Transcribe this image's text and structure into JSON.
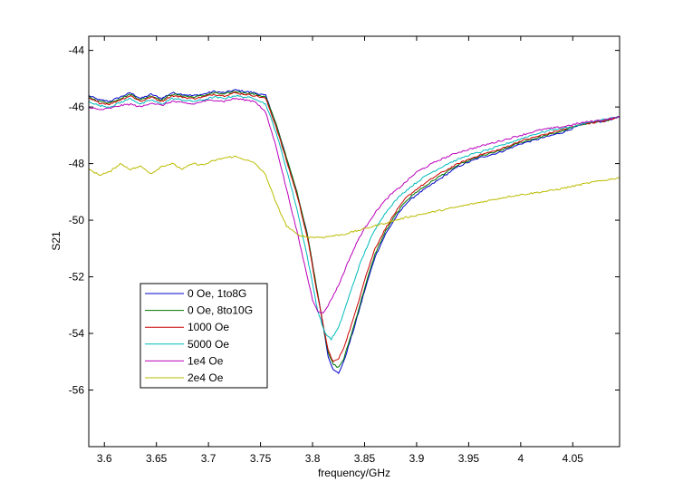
{
  "chart_data": {
    "type": "line",
    "title": "",
    "xlabel": "frequency/GHz",
    "ylabel": "S21",
    "xlim": [
      3.585,
      4.095
    ],
    "ylim": [
      -58,
      -43.5
    ],
    "xticks": [
      3.6,
      3.65,
      3.7,
      3.75,
      3.8,
      3.85,
      3.9,
      3.95,
      4,
      4.05
    ],
    "xtick_labels": [
      "3.6",
      "3.65",
      "3.7",
      "3.75",
      "3.8",
      "3.85",
      "3.9",
      "3.95",
      "4",
      "4.05"
    ],
    "yticks": [
      -56,
      -54,
      -52,
      -50,
      -48,
      -46,
      -44
    ],
    "ytick_labels": [
      "-56",
      "-54",
      "-52",
      "-50",
      "-48",
      "-46",
      "-44"
    ],
    "grid": false,
    "legend_position": "lower-left",
    "series": [
      {
        "name": "0 Oe, 1to8G",
        "color": "#0000cc",
        "x": [
          3.585,
          3.595,
          3.605,
          3.615,
          3.625,
          3.635,
          3.645,
          3.655,
          3.665,
          3.675,
          3.685,
          3.695,
          3.705,
          3.715,
          3.725,
          3.735,
          3.745,
          3.755,
          3.765,
          3.775,
          3.785,
          3.795,
          3.805,
          3.815,
          3.82,
          3.825,
          3.83,
          3.84,
          3.85,
          3.86,
          3.87,
          3.88,
          3.89,
          3.9,
          3.92,
          3.94,
          3.96,
          3.98,
          4.0,
          4.02,
          4.04,
          4.06,
          4.08,
          4.095
        ],
        "y": [
          -45.6,
          -45.75,
          -45.8,
          -45.65,
          -45.5,
          -45.7,
          -45.55,
          -45.7,
          -45.5,
          -45.55,
          -45.6,
          -45.55,
          -45.45,
          -45.5,
          -45.4,
          -45.45,
          -45.5,
          -45.6,
          -46.6,
          -47.8,
          -49.0,
          -50.5,
          -52.6,
          -54.8,
          -55.3,
          -55.4,
          -55.0,
          -53.8,
          -52.5,
          -51.3,
          -50.5,
          -49.9,
          -49.4,
          -49.1,
          -48.6,
          -48.1,
          -47.8,
          -47.6,
          -47.3,
          -47.1,
          -46.9,
          -46.6,
          -46.5,
          -46.35
        ]
      },
      {
        "name": "0 Oe, 8to10G",
        "color": "#007700",
        "x": [
          3.585,
          3.595,
          3.605,
          3.615,
          3.625,
          3.635,
          3.645,
          3.655,
          3.665,
          3.675,
          3.685,
          3.695,
          3.705,
          3.715,
          3.725,
          3.735,
          3.745,
          3.755,
          3.765,
          3.775,
          3.785,
          3.795,
          3.805,
          3.815,
          3.82,
          3.825,
          3.83,
          3.84,
          3.85,
          3.86,
          3.87,
          3.88,
          3.89,
          3.9,
          3.92,
          3.94,
          3.96,
          3.98,
          4.0,
          4.02,
          4.04,
          4.06,
          4.08,
          4.095
        ],
        "y": [
          -45.65,
          -45.8,
          -45.85,
          -45.7,
          -45.55,
          -45.75,
          -45.6,
          -45.75,
          -45.55,
          -45.6,
          -45.65,
          -45.6,
          -45.5,
          -45.55,
          -45.45,
          -45.5,
          -45.55,
          -45.65,
          -46.6,
          -47.8,
          -49.0,
          -50.5,
          -52.6,
          -54.7,
          -55.1,
          -55.2,
          -54.9,
          -53.7,
          -52.4,
          -51.2,
          -50.4,
          -49.8,
          -49.3,
          -49.0,
          -48.5,
          -48.05,
          -47.75,
          -47.55,
          -47.25,
          -47.05,
          -46.85,
          -46.6,
          -46.5,
          -46.35
        ]
      },
      {
        "name": "1000 Oe",
        "color": "#cc0000",
        "x": [
          3.585,
          3.595,
          3.605,
          3.615,
          3.625,
          3.635,
          3.645,
          3.655,
          3.665,
          3.675,
          3.685,
          3.695,
          3.705,
          3.715,
          3.725,
          3.735,
          3.745,
          3.755,
          3.765,
          3.775,
          3.785,
          3.795,
          3.805,
          3.815,
          3.82,
          3.825,
          3.83,
          3.84,
          3.85,
          3.86,
          3.87,
          3.88,
          3.89,
          3.9,
          3.92,
          3.94,
          3.96,
          3.98,
          4.0,
          4.02,
          4.04,
          4.06,
          4.08,
          4.095
        ],
        "y": [
          -45.7,
          -45.85,
          -45.9,
          -45.75,
          -45.6,
          -45.8,
          -45.65,
          -45.8,
          -45.6,
          -45.65,
          -45.7,
          -45.65,
          -45.55,
          -45.6,
          -45.5,
          -45.55,
          -45.6,
          -45.7,
          -46.7,
          -47.9,
          -49.1,
          -50.6,
          -52.7,
          -54.6,
          -55.0,
          -54.9,
          -54.5,
          -53.4,
          -52.1,
          -51.0,
          -50.3,
          -49.7,
          -49.2,
          -48.9,
          -48.4,
          -48.0,
          -47.7,
          -47.5,
          -47.2,
          -47.0,
          -46.8,
          -46.6,
          -46.5,
          -46.35
        ]
      },
      {
        "name": "5000 Oe",
        "color": "#00bbbb",
        "x": [
          3.585,
          3.595,
          3.605,
          3.615,
          3.625,
          3.635,
          3.645,
          3.655,
          3.665,
          3.675,
          3.685,
          3.695,
          3.705,
          3.715,
          3.725,
          3.735,
          3.745,
          3.755,
          3.765,
          3.775,
          3.785,
          3.795,
          3.805,
          3.812,
          3.818,
          3.825,
          3.835,
          3.845,
          3.855,
          3.865,
          3.875,
          3.885,
          3.895,
          3.91,
          3.93,
          3.95,
          3.97,
          3.99,
          4.01,
          4.03,
          4.05,
          4.07,
          4.095
        ],
        "y": [
          -45.8,
          -45.95,
          -46.0,
          -45.85,
          -45.7,
          -45.9,
          -45.75,
          -45.9,
          -45.7,
          -45.75,
          -45.8,
          -45.75,
          -45.65,
          -45.7,
          -45.6,
          -45.65,
          -45.7,
          -45.9,
          -46.9,
          -48.2,
          -49.6,
          -51.3,
          -53.2,
          -54.0,
          -54.2,
          -53.8,
          -52.7,
          -51.6,
          -50.7,
          -50.0,
          -49.5,
          -49.1,
          -48.8,
          -48.4,
          -48.0,
          -47.7,
          -47.5,
          -47.25,
          -47.0,
          -46.8,
          -46.7,
          -46.5,
          -46.35
        ]
      },
      {
        "name": "1e4 Oe",
        "color": "#bb00bb",
        "x": [
          3.585,
          3.595,
          3.605,
          3.615,
          3.625,
          3.635,
          3.645,
          3.655,
          3.665,
          3.675,
          3.685,
          3.695,
          3.705,
          3.715,
          3.725,
          3.735,
          3.745,
          3.755,
          3.765,
          3.775,
          3.785,
          3.795,
          3.8,
          3.805,
          3.81,
          3.815,
          3.825,
          3.835,
          3.845,
          3.855,
          3.865,
          3.875,
          3.885,
          3.9,
          3.92,
          3.94,
          3.96,
          3.98,
          4.0,
          4.02,
          4.04,
          4.06,
          4.08,
          4.095
        ],
        "y": [
          -46.0,
          -46.1,
          -46.05,
          -45.95,
          -45.9,
          -46.0,
          -45.85,
          -45.95,
          -45.8,
          -45.85,
          -45.9,
          -45.8,
          -45.75,
          -45.8,
          -45.7,
          -45.75,
          -45.8,
          -46.2,
          -47.4,
          -48.9,
          -50.4,
          -52.0,
          -52.8,
          -53.2,
          -53.3,
          -53.0,
          -52.3,
          -51.4,
          -50.6,
          -50.0,
          -49.5,
          -49.1,
          -48.8,
          -48.3,
          -47.9,
          -47.6,
          -47.4,
          -47.2,
          -47.0,
          -46.8,
          -46.7,
          -46.55,
          -46.45,
          -46.35
        ]
      },
      {
        "name": "2e4 Oe",
        "color": "#bbbb00",
        "x": [
          3.585,
          3.595,
          3.605,
          3.615,
          3.625,
          3.635,
          3.645,
          3.655,
          3.665,
          3.675,
          3.685,
          3.695,
          3.705,
          3.715,
          3.725,
          3.735,
          3.745,
          3.755,
          3.765,
          3.775,
          3.785,
          3.795,
          3.81,
          3.83,
          3.85,
          3.87,
          3.89,
          3.91,
          3.93,
          3.95,
          3.97,
          3.99,
          4.01,
          4.03,
          4.05,
          4.07,
          4.095
        ],
        "y": [
          -48.2,
          -48.4,
          -48.3,
          -48.0,
          -48.2,
          -48.1,
          -48.35,
          -48.1,
          -48.0,
          -48.2,
          -48.0,
          -48.05,
          -47.9,
          -47.8,
          -47.75,
          -47.85,
          -48.0,
          -48.4,
          -49.4,
          -50.2,
          -50.5,
          -50.6,
          -50.6,
          -50.5,
          -50.3,
          -50.1,
          -49.9,
          -49.75,
          -49.6,
          -49.45,
          -49.3,
          -49.15,
          -49.05,
          -48.95,
          -48.8,
          -48.65,
          -48.5
        ]
      }
    ]
  }
}
